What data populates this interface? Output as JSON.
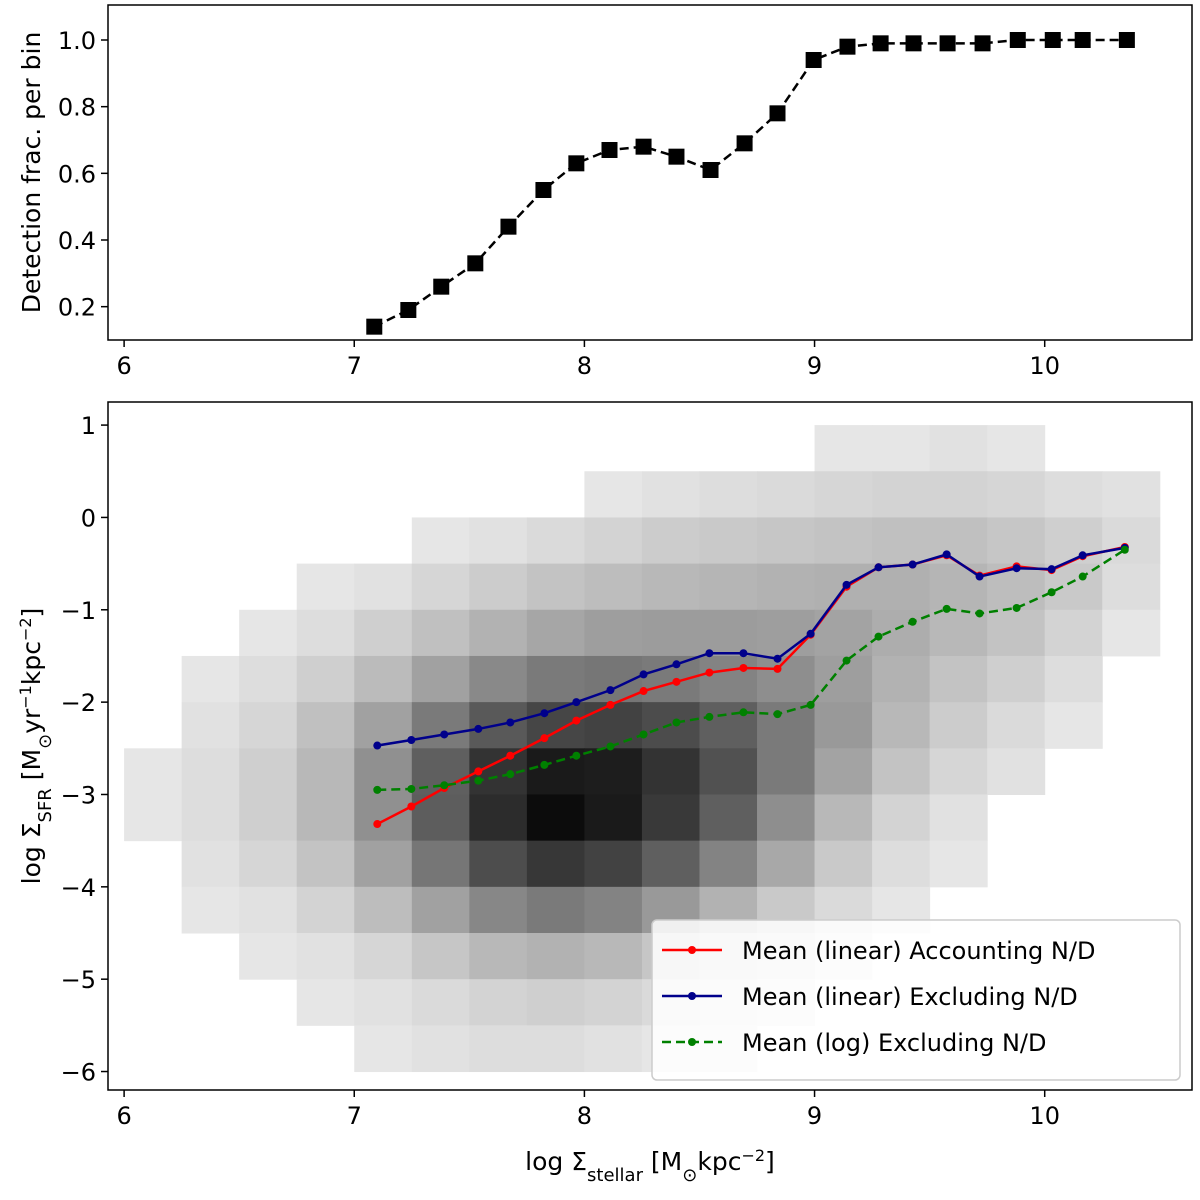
{
  "chart_data": [
    {
      "type": "line",
      "ylabel": [
        {
          "text": "Detection frac. per bin"
        }
      ],
      "xlim": [
        5.93,
        10.64
      ],
      "xticks": [
        6,
        7,
        8,
        9,
        10
      ],
      "ylim": [
        0.1,
        1.105
      ],
      "yticks": [
        0.2,
        0.4,
        0.6,
        0.8,
        {
          "value": 1,
          "label": "1.0"
        }
      ],
      "x": [
        7.087,
        7.235,
        7.378,
        7.526,
        7.67,
        7.822,
        7.965,
        8.109,
        8.257,
        8.4,
        8.548,
        8.696,
        8.839,
        8.996,
        9.143,
        9.287,
        9.43,
        9.578,
        9.73,
        9.883,
        10.035,
        10.165,
        10.357
      ],
      "series": [
        {
          "color": "#000000",
          "marker": "square",
          "linestyle": "dashed",
          "values": [
            0.14,
            0.19,
            0.26,
            0.33,
            0.44,
            0.55,
            0.63,
            0.67,
            0.68,
            0.65,
            0.61,
            0.69,
            0.78,
            0.94,
            0.98,
            0.99,
            0.99,
            0.99,
            0.99,
            1.0,
            1.0,
            1.0,
            1.0
          ]
        }
      ]
    },
    {
      "type": "line",
      "xlabel": [
        {
          "text": "log Σ"
        },
        {
          "text": "stellar",
          "sub": true
        },
        {
          "text": " [M"
        },
        {
          "text": "⊙",
          "sub": true
        },
        {
          "text": "kpc"
        },
        {
          "text": "−2",
          "sup": true
        },
        {
          "text": "]"
        }
      ],
      "ylabel": [
        {
          "text": "log Σ"
        },
        {
          "text": "SFR",
          "sub": true
        },
        {
          "text": " [M"
        },
        {
          "text": "⊙",
          "sub": true
        },
        {
          "text": "yr"
        },
        {
          "text": "−1",
          "sup": true
        },
        {
          "text": "kpc"
        },
        {
          "text": "−2",
          "sup": true
        },
        {
          "text": "]"
        }
      ],
      "xlim": [
        5.93,
        10.64
      ],
      "xticks": [
        6,
        7,
        8,
        9,
        10
      ],
      "ylim": [
        -6.2,
        1.25
      ],
      "yticks": [
        {
          "value": -6,
          "label": "−6"
        },
        {
          "value": -5,
          "label": "−5"
        },
        {
          "value": -4,
          "label": "−4"
        },
        {
          "value": -3,
          "label": "−3"
        },
        {
          "value": -2,
          "label": "−2"
        },
        {
          "value": -1,
          "label": "−1"
        },
        0,
        1
      ],
      "legend": "lower right",
      "histogram2d": {
        "xbins": [
          6.0,
          6.25,
          6.5,
          6.75,
          7.0,
          7.25,
          7.5,
          7.75,
          8.0,
          8.25,
          8.5,
          8.75,
          9.0,
          9.25,
          9.5,
          9.75,
          10.0,
          10.25,
          10.5
        ],
        "ybins": [
          1.0,
          0.5,
          0.0,
          -0.5,
          -1.0,
          -1.5,
          -2.0,
          -2.5,
          -3.0,
          -3.5,
          -4.0,
          -4.5,
          -5.0,
          -5.5,
          -6.0
        ],
        "counts": [
          [
            0,
            0,
            0,
            0,
            0,
            0,
            0,
            0,
            0,
            0,
            0,
            0,
            2,
            2,
            3,
            2,
            0,
            0
          ],
          [
            0,
            0,
            0,
            0,
            0,
            0,
            0,
            0,
            2,
            3,
            4,
            5,
            6,
            7,
            7,
            6,
            4,
            3
          ],
          [
            0,
            0,
            0,
            0,
            0,
            2,
            3,
            5,
            7,
            9,
            10,
            11,
            12,
            13,
            13,
            11,
            8,
            5
          ],
          [
            0,
            0,
            0,
            2,
            3,
            6,
            9,
            12,
            14,
            16,
            17,
            18,
            19,
            19,
            17,
            14,
            10,
            4
          ],
          [
            0,
            0,
            2,
            4,
            8,
            13,
            18,
            23,
            26,
            27,
            27,
            26,
            24,
            20,
            16,
            12,
            7,
            2
          ],
          [
            0,
            2,
            4,
            8,
            15,
            25,
            35,
            42,
            44,
            42,
            38,
            33,
            26,
            18,
            12,
            8,
            4,
            0
          ],
          [
            0,
            3,
            6,
            13,
            25,
            42,
            58,
            68,
            70,
            65,
            55,
            42,
            28,
            16,
            9,
            5,
            2,
            0
          ],
          [
            2,
            4,
            8,
            16,
            32,
            55,
            78,
            92,
            90,
            78,
            62,
            42,
            24,
            12,
            6,
            3,
            0,
            0
          ],
          [
            2,
            4,
            8,
            16,
            32,
            56,
            82,
            100,
            92,
            75,
            55,
            33,
            16,
            7,
            3,
            0,
            0,
            0
          ],
          [
            0,
            3,
            6,
            12,
            25,
            44,
            64,
            76,
            70,
            55,
            38,
            22,
            10,
            4,
            2,
            0,
            0,
            0
          ],
          [
            0,
            2,
            3,
            7,
            14,
            25,
            36,
            42,
            38,
            28,
            18,
            10,
            5,
            2,
            0,
            0,
            0,
            0
          ],
          [
            0,
            0,
            2,
            3,
            6,
            11,
            16,
            18,
            16,
            11,
            7,
            4,
            2,
            0,
            0,
            0,
            0,
            0
          ],
          [
            0,
            0,
            0,
            2,
            3,
            5,
            7,
            8,
            7,
            5,
            3,
            2,
            0,
            0,
            0,
            0,
            0,
            0
          ],
          [
            0,
            0,
            0,
            0,
            2,
            3,
            4,
            4,
            3,
            2,
            2,
            0,
            0,
            0,
            0,
            0,
            0,
            0
          ]
        ]
      },
      "x": [
        7.1,
        7.248,
        7.391,
        7.539,
        7.678,
        7.826,
        7.965,
        8.113,
        8.257,
        8.4,
        8.543,
        8.691,
        8.839,
        8.983,
        9.139,
        9.278,
        9.426,
        9.574,
        9.717,
        9.878,
        10.03,
        10.165,
        10.348
      ],
      "series": [
        {
          "name": "Mean (linear) Accounting N/D",
          "color": "#ff0000",
          "marker": "circle",
          "linestyle": "solid",
          "values": [
            -3.32,
            -3.13,
            -2.93,
            -2.75,
            -2.58,
            -2.39,
            -2.2,
            -2.03,
            -1.88,
            -1.78,
            -1.68,
            -1.63,
            -1.64,
            -1.27,
            -0.75,
            -0.54,
            -0.51,
            -0.41,
            -0.63,
            -0.53,
            -0.57,
            -0.42,
            -0.32
          ]
        },
        {
          "name": "Mean (linear) Excluding N/D",
          "color": "#00008b",
          "marker": "circle",
          "linestyle": "solid",
          "values": [
            -2.47,
            -2.41,
            -2.35,
            -2.29,
            -2.22,
            -2.12,
            -2.0,
            -1.87,
            -1.7,
            -1.59,
            -1.47,
            -1.47,
            -1.53,
            -1.26,
            -0.73,
            -0.54,
            -0.51,
            -0.4,
            -0.64,
            -0.55,
            -0.56,
            -0.41,
            -0.33
          ]
        },
        {
          "name": "Mean (log) Excluding N/D",
          "color": "#008000",
          "marker": "circle",
          "linestyle": "dashed",
          "values": [
            -2.95,
            -2.94,
            -2.9,
            -2.85,
            -2.78,
            -2.68,
            -2.58,
            -2.48,
            -2.35,
            -2.22,
            -2.16,
            -2.11,
            -2.13,
            -2.03,
            -1.55,
            -1.29,
            -1.13,
            -0.99,
            -1.04,
            -0.98,
            -0.81,
            -0.64,
            -0.35
          ]
        }
      ]
    }
  ]
}
